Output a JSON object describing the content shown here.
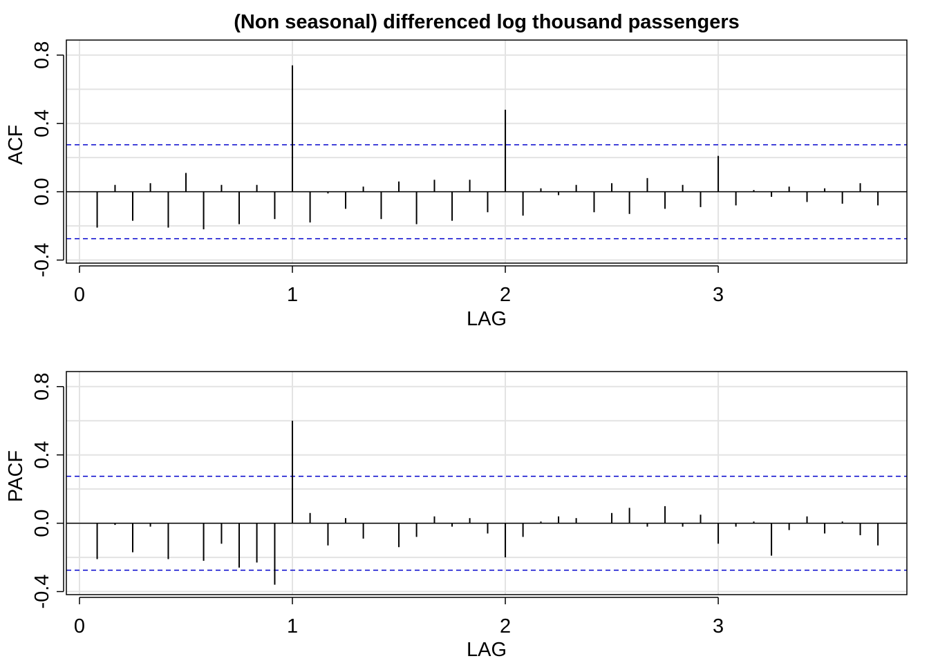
{
  "chart_title": "(Non seasonal) differenced log thousand passengers",
  "colors": {
    "confidence_band": "#0000cc",
    "spike": "#000000",
    "grid": "#e3e3e3"
  },
  "chart_data": [
    {
      "type": "bar",
      "title": "(Non seasonal) differenced log thousand passengers",
      "xlabel": "LAG",
      "ylabel": "ACF",
      "xlim": [
        0,
        3.75
      ],
      "ylim": [
        -0.4,
        0.8
      ],
      "x_ticks": [
        0,
        1,
        2,
        3
      ],
      "y_ticks": [
        -0.4,
        0.0,
        0.4,
        0.8
      ],
      "y_tick_labels": [
        "-0.4",
        "0.0",
        "0.4",
        "0.8"
      ],
      "grid": true,
      "confidence_band": [
        -0.275,
        0.275
      ],
      "x": [
        0.083,
        0.167,
        0.25,
        0.333,
        0.417,
        0.5,
        0.583,
        0.667,
        0.75,
        0.833,
        0.917,
        1.0,
        1.083,
        1.167,
        1.25,
        1.333,
        1.417,
        1.5,
        1.583,
        1.667,
        1.75,
        1.833,
        1.917,
        2.0,
        2.083,
        2.167,
        2.25,
        2.333,
        2.417,
        2.5,
        2.583,
        2.667,
        2.75,
        2.833,
        2.917,
        3.0,
        3.083,
        3.167,
        3.25,
        3.333,
        3.417,
        3.5,
        3.583,
        3.667,
        3.75
      ],
      "values": [
        -0.21,
        0.04,
        -0.17,
        0.05,
        -0.21,
        0.11,
        -0.22,
        0.04,
        -0.19,
        0.04,
        -0.16,
        0.74,
        -0.18,
        -0.01,
        -0.1,
        0.03,
        -0.16,
        0.06,
        -0.19,
        0.07,
        -0.17,
        0.07,
        -0.12,
        0.48,
        -0.14,
        0.02,
        -0.02,
        0.04,
        -0.12,
        0.05,
        -0.13,
        0.08,
        -0.1,
        0.04,
        -0.09,
        0.21,
        -0.08,
        0.01,
        -0.03,
        0.03,
        -0.06,
        0.02,
        -0.07,
        0.05,
        -0.08
      ]
    },
    {
      "type": "bar",
      "title": "",
      "xlabel": "LAG",
      "ylabel": "PACF",
      "xlim": [
        0,
        3.75
      ],
      "ylim": [
        -0.4,
        0.8
      ],
      "x_ticks": [
        0,
        1,
        2,
        3
      ],
      "y_ticks": [
        -0.4,
        0.0,
        0.4,
        0.8
      ],
      "y_tick_labels": [
        "-0.4",
        "0.0",
        "0.4",
        "0.8"
      ],
      "grid": true,
      "confidence_band": [
        -0.275,
        0.275
      ],
      "x": [
        0.083,
        0.167,
        0.25,
        0.333,
        0.417,
        0.5,
        0.583,
        0.667,
        0.75,
        0.833,
        0.917,
        1.0,
        1.083,
        1.167,
        1.25,
        1.333,
        1.417,
        1.5,
        1.583,
        1.667,
        1.75,
        1.833,
        1.917,
        2.0,
        2.083,
        2.167,
        2.25,
        2.333,
        2.417,
        2.5,
        2.583,
        2.667,
        2.75,
        2.833,
        2.917,
        3.0,
        3.083,
        3.167,
        3.25,
        3.333,
        3.417,
        3.5,
        3.583,
        3.667,
        3.75
      ],
      "values": [
        -0.21,
        -0.01,
        -0.17,
        -0.02,
        -0.21,
        0.0,
        -0.22,
        -0.12,
        -0.26,
        -0.23,
        -0.36,
        0.6,
        0.06,
        -0.13,
        0.03,
        -0.09,
        0.0,
        -0.14,
        -0.08,
        0.04,
        -0.02,
        0.03,
        -0.06,
        -0.2,
        -0.08,
        0.01,
        0.04,
        0.03,
        0.0,
        0.06,
        0.09,
        -0.02,
        0.1,
        -0.02,
        0.05,
        -0.12,
        -0.02,
        0.01,
        -0.19,
        -0.04,
        0.04,
        -0.06,
        0.01,
        -0.07,
        -0.13
      ]
    }
  ]
}
